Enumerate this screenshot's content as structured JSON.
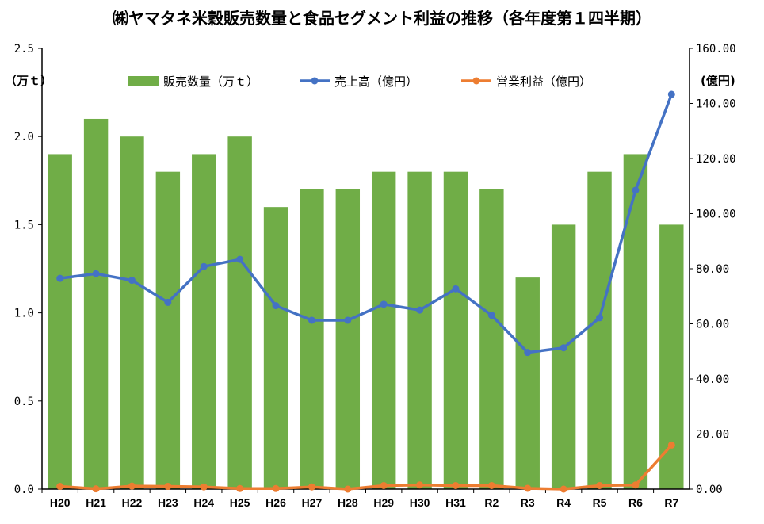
{
  "chart_data": {
    "type": "bar",
    "title": "㈱ヤマタネ米穀販売数量と食品セグメント利益の推移（各年度第１四半期）",
    "left_unit": "（万ｔ）",
    "right_unit": "(億円)",
    "categories": [
      "H20",
      "H21",
      "H22",
      "H23",
      "H24",
      "H25",
      "H26",
      "H27",
      "H28",
      "H29",
      "H30",
      "H31",
      "R2",
      "R3",
      "R4",
      "R5",
      "R6",
      "R7"
    ],
    "left_axis": {
      "ylim": [
        0,
        2.5
      ],
      "ticks": [
        "0.0",
        "0.5",
        "1.0",
        "1.5",
        "2.0",
        "2.5"
      ]
    },
    "right_axis": {
      "ylim": [
        0,
        160
      ],
      "ticks": [
        "0.00",
        "20.00",
        "40.00",
        "60.00",
        "80.00",
        "100.00",
        "120.00",
        "140.00",
        "160.00"
      ]
    },
    "series": [
      {
        "name": "販売数量（万ｔ）",
        "type": "bar",
        "axis": "left",
        "color": "#70AD47",
        "values": [
          1.9,
          2.1,
          2.0,
          1.8,
          1.9,
          2.0,
          1.6,
          1.7,
          1.7,
          1.8,
          1.8,
          1.8,
          1.7,
          1.2,
          1.5,
          1.8,
          1.9,
          1.5
        ]
      },
      {
        "name": "売上高（億円）",
        "type": "line",
        "axis": "right",
        "color": "#4472C4",
        "values": [
          76.5,
          78.2,
          75.8,
          67.8,
          80.8,
          83.4,
          66.6,
          61.3,
          61.3,
          67.1,
          65.0,
          72.7,
          63.1,
          49.6,
          51.3,
          62.2,
          108.5,
          143.3
        ]
      },
      {
        "name": "営業利益（億円）",
        "type": "line",
        "axis": "right",
        "color": "#ED7D31",
        "values": [
          1.0,
          0.1,
          1.1,
          1.0,
          0.8,
          0.2,
          0.2,
          0.8,
          0.0,
          1.3,
          1.5,
          1.3,
          1.3,
          0.3,
          0.0,
          1.3,
          1.5,
          16.0
        ]
      }
    ],
    "legend_position": "top",
    "grid": false
  }
}
